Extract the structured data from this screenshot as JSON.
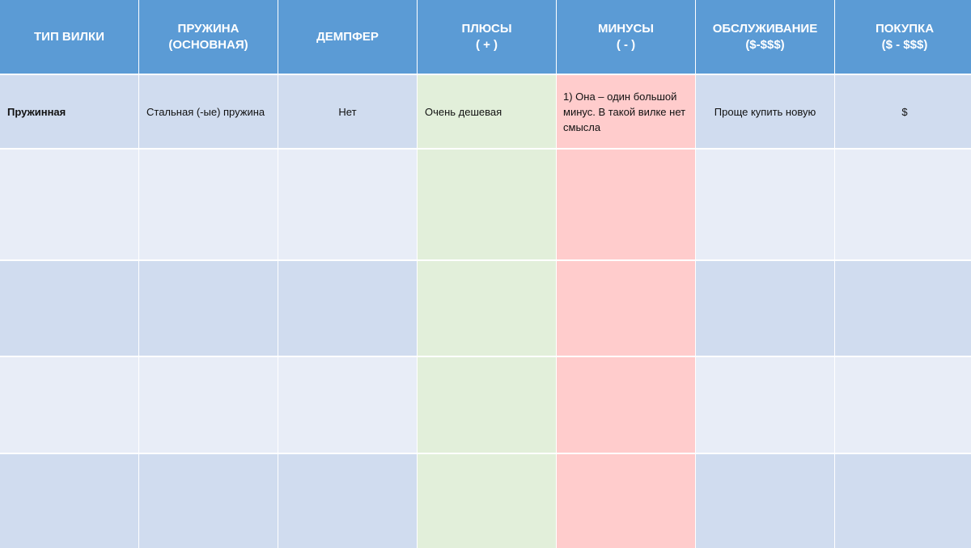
{
  "table": {
    "headers": [
      "ТИП ВИЛКИ",
      "ПРУЖИНА\n(ОСНОВНАЯ)",
      "ДЕМПФЕР",
      "ПЛЮСЫ\n( + )",
      "МИНУСЫ\n( - )",
      "ОБСЛУЖИВАНИЕ\n($-$$$)",
      "ПОКУПКА\n($ - $$$)"
    ],
    "rows": [
      [
        "Пружинная",
        "Стальная (-ые) пружина",
        "Нет",
        "Очень дешевая",
        "1) Она – один большой минус. В такой вилке нет смысла",
        "Проще купить новую",
        "$"
      ],
      [
        "",
        "",
        "",
        "",
        "",
        "",
        ""
      ],
      [
        "",
        "",
        "",
        "",
        "",
        "",
        ""
      ],
      [
        "",
        "",
        "",
        "",
        "",
        "",
        ""
      ],
      [
        "",
        "",
        "",
        "",
        "",
        "",
        ""
      ]
    ]
  },
  "colors": {
    "header_bg": "#5b9bd5",
    "row_dark": "#d0dcef",
    "row_light": "#e8edf7",
    "plus_column": "#e2efda",
    "minus_column": "#ffcccc"
  }
}
